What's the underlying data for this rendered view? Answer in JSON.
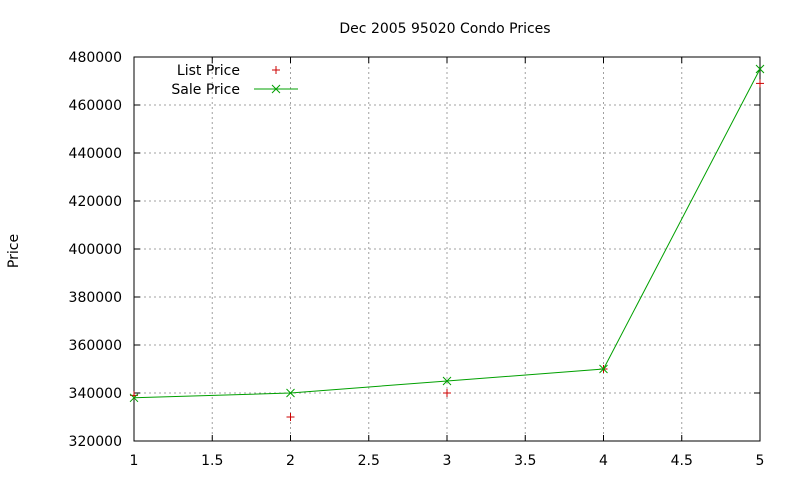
{
  "chart_data": {
    "type": "line",
    "title": "Dec 2005 95020 Condo Prices",
    "xlabel": "",
    "ylabel": "Price",
    "xlim": [
      1,
      5
    ],
    "ylim": [
      320000,
      480000
    ],
    "xticks": [
      "1",
      "1.5",
      "2",
      "2.5",
      "3",
      "3.5",
      "4",
      "4.5",
      "5"
    ],
    "yticks": [
      "320000",
      "340000",
      "360000",
      "380000",
      "400000",
      "420000",
      "440000",
      "460000",
      "480000"
    ],
    "grid": true,
    "legend_position": "top-left",
    "series": [
      {
        "name": "List Price",
        "style": "points",
        "marker": "plus",
        "color": "#cc0000",
        "x": [
          1,
          2,
          3,
          4,
          5
        ],
        "y": [
          339000,
          330000,
          340000,
          350000,
          469000
        ]
      },
      {
        "name": "Sale Price",
        "style": "linespoints",
        "marker": "cross",
        "color": "#00a000",
        "x": [
          1,
          2,
          3,
          4,
          5
        ],
        "y": [
          338000,
          340000,
          345000,
          350000,
          475000
        ]
      }
    ]
  }
}
